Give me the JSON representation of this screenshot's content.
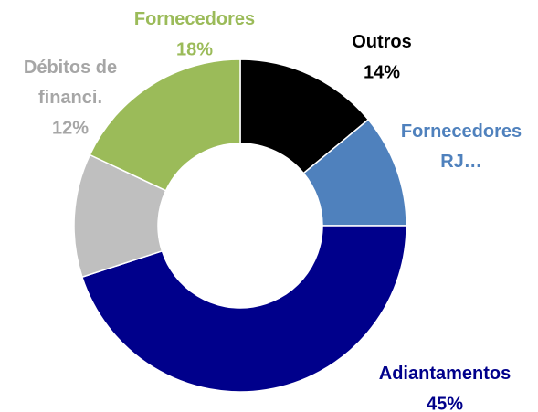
{
  "chart_data": {
    "type": "donut",
    "categories": [
      "Outros",
      "Fornecedores RJ…",
      "Adiantamentos",
      "Débitos de financi.",
      "Fornecedores"
    ],
    "values": [
      14,
      11,
      45,
      12,
      18
    ],
    "value_labels": [
      "14%",
      null,
      "45%",
      "12%",
      "18%"
    ],
    "colors": [
      "#000000",
      "#4f81bd",
      "#00008b",
      "#bfbfbf",
      "#9bbb59"
    ]
  }
}
